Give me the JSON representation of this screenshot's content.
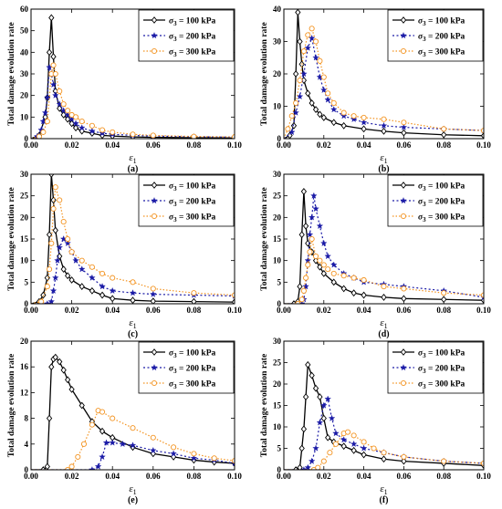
{
  "chart_data": [
    {
      "type": "line",
      "panel_label": "(a)",
      "xlabel": "ε",
      "xlabel_sub": "1",
      "ylabel": "Total damage evolution rate",
      "xlim": [
        0,
        0.1
      ],
      "ylim": [
        0,
        60
      ],
      "xticks": [
        "0.00",
        "0.02",
        "0.04",
        "0.06",
        "0.08",
        "0.10"
      ],
      "yticks": [
        "0",
        "10",
        "20",
        "30",
        "40",
        "50",
        "60"
      ],
      "legend": "top-right",
      "series": [
        {
          "name": "σ₃ = 100 kPa",
          "label_sym": "σ",
          "label_sub": "3",
          "label_rest": " = 100 kPa",
          "x": [
            0.0,
            0.004,
            0.007,
            0.008,
            0.009,
            0.01,
            0.011,
            0.012,
            0.014,
            0.016,
            0.018,
            0.02,
            0.022,
            0.025,
            0.03,
            0.035,
            0.04,
            0.05,
            0.06,
            0.08,
            0.1
          ],
          "y": [
            0,
            1.5,
            10,
            19,
            40,
            56,
            38,
            22,
            14,
            11,
            9,
            7,
            5,
            3.5,
            2.5,
            1.5,
            1.2,
            0.8,
            0.6,
            0.4,
            0.3
          ]
        },
        {
          "name": "σ₃ = 200 kPa",
          "label_sym": "σ",
          "label_sub": "3",
          "label_rest": " = 200 kPa",
          "x": [
            0.0,
            0.003,
            0.005,
            0.006,
            0.007,
            0.008,
            0.009,
            0.01,
            0.011,
            0.012,
            0.014,
            0.016,
            0.018,
            0.02,
            0.022,
            0.025,
            0.03,
            0.035,
            0.04,
            0.05,
            0.06,
            0.08,
            0.1
          ],
          "y": [
            0,
            1,
            4,
            8,
            12,
            19,
            33,
            30,
            25,
            20,
            16,
            13,
            11,
            9,
            7,
            5,
            3.5,
            2.5,
            2,
            1.5,
            1.2,
            0.9,
            0.7
          ]
        },
        {
          "name": "σ₃ = 300 kPa",
          "label_sym": "σ",
          "label_sub": "3",
          "label_rest": " = 300 kPa",
          "x": [
            0.0,
            0.004,
            0.006,
            0.008,
            0.01,
            0.011,
            0.012,
            0.014,
            0.016,
            0.018,
            0.02,
            0.022,
            0.025,
            0.03,
            0.035,
            0.04,
            0.05,
            0.06,
            0.08,
            0.1
          ],
          "y": [
            0,
            1,
            3,
            8,
            30,
            34,
            30,
            22,
            16,
            13,
            11,
            10,
            8,
            6,
            4,
            3,
            2,
            1.5,
            1,
            0.8
          ]
        }
      ]
    },
    {
      "type": "line",
      "panel_label": "(b)",
      "xlabel": "ε",
      "xlabel_sub": "1",
      "ylabel": "Total damage evolution rate",
      "xlim": [
        0,
        0.1
      ],
      "ylim": [
        0,
        40
      ],
      "xticks": [
        "0.00",
        "0.02",
        "0.04",
        "0.06",
        "0.08",
        "0.10"
      ],
      "yticks": [
        "0",
        "10",
        "20",
        "30",
        "40"
      ],
      "legend": "top-right",
      "series": [
        {
          "name": "σ₃ = 100 kPa",
          "label_sym": "σ",
          "label_sub": "3",
          "label_rest": " = 100 kPa",
          "x": [
            0.0,
            0.003,
            0.005,
            0.006,
            0.007,
            0.008,
            0.009,
            0.01,
            0.012,
            0.014,
            0.016,
            0.018,
            0.02,
            0.025,
            0.03,
            0.04,
            0.05,
            0.06,
            0.08,
            0.1
          ],
          "y": [
            0,
            1,
            4,
            20,
            39,
            30,
            23,
            18,
            14,
            11,
            9,
            7.5,
            6.5,
            5,
            4,
            3,
            2.3,
            1.8,
            1.2,
            0.9
          ]
        },
        {
          "name": "σ₃ = 200 kPa",
          "label_sym": "σ",
          "label_sub": "3",
          "label_rest": " = 200 kPa",
          "x": [
            0.0,
            0.004,
            0.006,
            0.008,
            0.01,
            0.012,
            0.014,
            0.016,
            0.018,
            0.02,
            0.022,
            0.025,
            0.03,
            0.035,
            0.04,
            0.05,
            0.06,
            0.08,
            0.1
          ],
          "y": [
            0,
            2,
            8,
            13,
            20,
            28,
            31,
            25,
            19,
            15,
            12,
            9,
            7,
            6,
            5,
            4,
            3.5,
            3,
            2.5
          ]
        },
        {
          "name": "σ₃ = 300 kPa",
          "label_sym": "σ",
          "label_sub": "3",
          "label_rest": " = 300 kPa",
          "x": [
            0.0,
            0.002,
            0.004,
            0.006,
            0.008,
            0.01,
            0.012,
            0.014,
            0.016,
            0.018,
            0.02,
            0.022,
            0.025,
            0.03,
            0.035,
            0.04,
            0.05,
            0.06,
            0.08,
            0.1
          ],
          "y": [
            0,
            3,
            7,
            11,
            18,
            27,
            32,
            34,
            30,
            24,
            19,
            14,
            11,
            8,
            7,
            6.5,
            6,
            5,
            3,
            2.5
          ]
        }
      ]
    },
    {
      "type": "line",
      "panel_label": "(c)",
      "xlabel": "ε",
      "xlabel_sub": "1",
      "ylabel": "Total damage evolution rate",
      "xlim": [
        0,
        0.1
      ],
      "ylim": [
        0,
        30
      ],
      "xticks": [
        "0.00",
        "0.02",
        "0.04",
        "0.06",
        "0.08",
        "0.10"
      ],
      "yticks": [
        "0",
        "5",
        "10",
        "15",
        "20",
        "25",
        "30"
      ],
      "legend": "top-right",
      "series": [
        {
          "name": "σ₃ = 100 kPa",
          "label_sym": "σ",
          "label_sub": "3",
          "label_rest": " = 100 kPa",
          "x": [
            0.0,
            0.004,
            0.006,
            0.008,
            0.009,
            0.01,
            0.011,
            0.012,
            0.014,
            0.016,
            0.018,
            0.02,
            0.025,
            0.03,
            0.035,
            0.04,
            0.05,
            0.06,
            0.08,
            0.1
          ],
          "y": [
            0,
            0.5,
            2,
            6,
            16,
            30,
            24,
            17,
            11,
            8,
            6.5,
            5.5,
            4,
            3,
            2,
            1.2,
            0.8,
            0.6,
            0.5,
            0.4
          ]
        },
        {
          "name": "σ₃ = 200 kPa",
          "label_sym": "σ",
          "label_sub": "3",
          "label_rest": " = 200 kPa",
          "x": [
            0.0,
            0.008,
            0.01,
            0.011,
            0.012,
            0.013,
            0.014,
            0.016,
            0.018,
            0.02,
            0.022,
            0.025,
            0.03,
            0.035,
            0.04,
            0.05,
            0.06,
            0.08,
            0.1
          ],
          "y": [
            0,
            0,
            0.5,
            3,
            6,
            10,
            13,
            15,
            14,
            12,
            10,
            8,
            6,
            4,
            3,
            2.5,
            2.2,
            2,
            1.8
          ]
        },
        {
          "name": "σ₃ = 300 kPa",
          "label_sym": "σ",
          "label_sub": "3",
          "label_rest": " = 300 kPa",
          "x": [
            0.0,
            0.005,
            0.008,
            0.009,
            0.01,
            0.011,
            0.012,
            0.014,
            0.016,
            0.018,
            0.02,
            0.025,
            0.03,
            0.035,
            0.04,
            0.05,
            0.06,
            0.08,
            0.1
          ],
          "y": [
            0,
            0.5,
            4,
            8,
            14,
            22,
            27,
            24,
            19,
            15,
            12,
            10,
            8.5,
            7,
            6,
            5,
            3.5,
            2.5,
            2
          ]
        }
      ]
    },
    {
      "type": "line",
      "panel_label": "(d)",
      "xlabel": "ε",
      "xlabel_sub": "1",
      "ylabel": "Total damage evolution rate",
      "xlim": [
        0,
        0.1
      ],
      "ylim": [
        0,
        30
      ],
      "xticks": [
        "0.00",
        "0.02",
        "0.04",
        "0.06",
        "0.08",
        "0.10"
      ],
      "yticks": [
        "0",
        "5",
        "10",
        "15",
        "20",
        "25",
        "30"
      ],
      "legend": "top-right",
      "series": [
        {
          "name": "σ₃ = 100 kPa",
          "label_sym": "σ",
          "label_sub": "3",
          "label_rest": " = 100 kPa",
          "x": [
            0.0,
            0.005,
            0.007,
            0.008,
            0.009,
            0.01,
            0.011,
            0.012,
            0.014,
            0.016,
            0.018,
            0.02,
            0.025,
            0.03,
            0.035,
            0.04,
            0.05,
            0.06,
            0.08,
            0.1
          ],
          "y": [
            0,
            0,
            0.5,
            4,
            16,
            26,
            18,
            14,
            12,
            10,
            8.5,
            7,
            5,
            3.5,
            2.5,
            2,
            1.5,
            1.2,
            1,
            0.8
          ]
        },
        {
          "name": "σ₃ = 200 kPa",
          "label_sym": "σ",
          "label_sub": "3",
          "label_rest": " = 200 kPa",
          "x": [
            0.0,
            0.009,
            0.01,
            0.011,
            0.012,
            0.013,
            0.014,
            0.015,
            0.016,
            0.018,
            0.02,
            0.022,
            0.025,
            0.03,
            0.035,
            0.04,
            0.05,
            0.06,
            0.08,
            0.1
          ],
          "y": [
            0,
            0,
            1,
            4,
            10,
            16,
            20,
            25,
            22,
            18,
            14,
            11,
            9,
            7,
            6,
            5,
            4.5,
            4,
            3,
            1.5
          ]
        },
        {
          "name": "σ₃ = 300 kPa",
          "label_sym": "σ",
          "label_sub": "3",
          "label_rest": " = 300 kPa",
          "x": [
            0.0,
            0.007,
            0.009,
            0.01,
            0.011,
            0.012,
            0.013,
            0.014,
            0.016,
            0.018,
            0.02,
            0.022,
            0.025,
            0.03,
            0.035,
            0.04,
            0.05,
            0.06,
            0.08,
            0.1
          ],
          "y": [
            0,
            0,
            1,
            3,
            6,
            9,
            12,
            15,
            11,
            10,
            9,
            8,
            7,
            6.5,
            6,
            5.5,
            4,
            3.5,
            2.5,
            2
          ]
        }
      ]
    },
    {
      "type": "line",
      "panel_label": "(e)",
      "xlabel": "ε",
      "xlabel_sub": "1",
      "ylabel": "Total damage evolution rate",
      "xlim": [
        0,
        0.1
      ],
      "ylim": [
        0,
        20
      ],
      "xticks": [
        "0.00",
        "0.02",
        "0.04",
        "0.06",
        "0.08",
        "0.10"
      ],
      "yticks": [
        "0",
        "4",
        "8",
        "12",
        "16",
        "20"
      ],
      "legend": "top-right",
      "series": [
        {
          "name": "σ₃ = 100 kPa",
          "label_sym": "σ",
          "label_sub": "3",
          "label_rest": " = 100 kPa",
          "x": [
            0.0,
            0.006,
            0.008,
            0.009,
            0.01,
            0.011,
            0.012,
            0.014,
            0.016,
            0.018,
            0.02,
            0.025,
            0.03,
            0.035,
            0.04,
            0.05,
            0.06,
            0.07,
            0.08,
            0.09,
            0.1
          ],
          "y": [
            0,
            0,
            0.5,
            8,
            16,
            17.2,
            17.5,
            16.8,
            15.5,
            14,
            12.5,
            10,
            7.5,
            6,
            5,
            3.5,
            2.5,
            2,
            1.5,
            1.2,
            1
          ]
        },
        {
          "name": "σ₃ = 200 kPa",
          "label_sym": "σ",
          "label_sub": "3",
          "label_rest": " = 200 kPa",
          "x": [
            0.0,
            0.03,
            0.033,
            0.035,
            0.037,
            0.04,
            0.045,
            0.05,
            0.06,
            0.07,
            0.08,
            0.09,
            0.1
          ],
          "y": [
            0,
            0,
            0.5,
            2,
            4.2,
            4.2,
            4,
            3.8,
            3,
            2.5,
            1.8,
            1.5,
            1
          ]
        },
        {
          "name": "σ₃ = 300 kPa",
          "label_sym": "σ",
          "label_sub": "3",
          "label_rest": " = 300 kPa",
          "x": [
            0.0,
            0.018,
            0.02,
            0.023,
            0.026,
            0.03,
            0.033,
            0.035,
            0.04,
            0.05,
            0.06,
            0.07,
            0.08,
            0.09,
            0.1
          ],
          "y": [
            0,
            0,
            0.5,
            2,
            4,
            7,
            9.2,
            9,
            8,
            6.5,
            5,
            3.5,
            2.5,
            1.8,
            1.4
          ]
        }
      ]
    },
    {
      "type": "line",
      "panel_label": "(f)",
      "xlabel": "ε",
      "xlabel_sub": "1",
      "ylabel": "Total damage evolution rate",
      "xlim": [
        0,
        0.1
      ],
      "ylim": [
        0,
        30
      ],
      "xticks": [
        "0.00",
        "0.02",
        "0.04",
        "0.06",
        "0.08",
        "0.10"
      ],
      "yticks": [
        "0",
        "5",
        "10",
        "15",
        "20",
        "25",
        "30"
      ],
      "legend": "top-right",
      "series": [
        {
          "name": "σ₃ = 100 kPa",
          "label_sym": "σ",
          "label_sub": "3",
          "label_rest": " = 100 kPa",
          "x": [
            0.0,
            0.006,
            0.008,
            0.009,
            0.01,
            0.011,
            0.012,
            0.014,
            0.016,
            0.018,
            0.02,
            0.022,
            0.025,
            0.03,
            0.035,
            0.04,
            0.05,
            0.06,
            0.08,
            0.1
          ],
          "y": [
            0,
            0,
            0.5,
            5,
            9.5,
            17,
            24.5,
            22,
            19,
            17,
            12,
            7.5,
            6.5,
            5.5,
            4.5,
            3.5,
            2.5,
            2,
            1.5,
            1
          ]
        },
        {
          "name": "σ₃ = 200 kPa",
          "label_sym": "σ",
          "label_sub": "3",
          "label_rest": " = 200 kPa",
          "x": [
            0.0,
            0.01,
            0.012,
            0.014,
            0.016,
            0.018,
            0.02,
            0.022,
            0.024,
            0.026,
            0.03,
            0.035,
            0.04,
            0.05,
            0.06,
            0.08,
            0.1
          ],
          "y": [
            0,
            0,
            0.5,
            2,
            5,
            11,
            15,
            16.5,
            12,
            8.5,
            7,
            6,
            5,
            4,
            3,
            2,
            1.5
          ]
        },
        {
          "name": "σ₃ = 300 kPa",
          "label_sym": "σ",
          "label_sub": "3",
          "label_rest": " = 300 kPa",
          "x": [
            0.0,
            0.015,
            0.017,
            0.02,
            0.023,
            0.026,
            0.03,
            0.032,
            0.035,
            0.04,
            0.045,
            0.05,
            0.06,
            0.08,
            0.1
          ],
          "y": [
            0,
            0,
            0.5,
            2,
            4,
            6,
            8.5,
            8.8,
            8,
            6.5,
            5,
            4,
            3,
            2,
            1.5
          ]
        }
      ]
    }
  ],
  "style": {
    "colors": [
      "#000000",
      "#1a1aa6",
      "#f39422"
    ],
    "markers": [
      "diamond",
      "star",
      "circle"
    ],
    "dashes": [
      "",
      "2,2.5",
      "1.5,2"
    ]
  }
}
